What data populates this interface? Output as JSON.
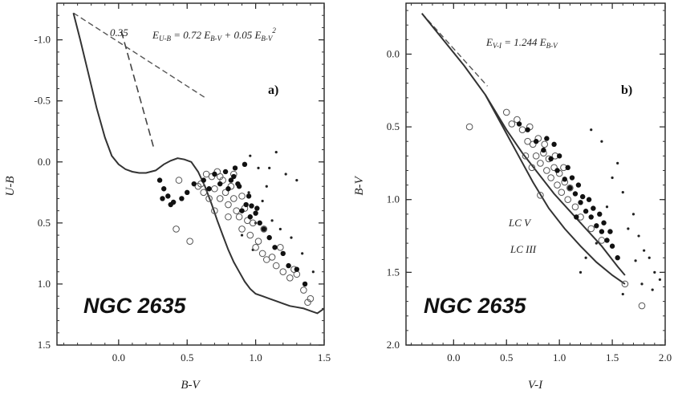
{
  "chart_data": [
    {
      "type": "scatter",
      "panel_label": "a)",
      "title": "NGC 2635",
      "xlabel": "B-V",
      "ylabel": "U-B",
      "xlim": [
        -0.45,
        1.5
      ],
      "ylim": [
        1.5,
        -1.3
      ],
      "y_inverted": true,
      "xticks": [
        "0.0",
        "0.5",
        "1.0",
        "1.5"
      ],
      "yticks": [
        "-1.0",
        "-0.5",
        "0.0",
        "0.5",
        "1.0",
        "1.5"
      ],
      "xtick_values": [
        0.0,
        0.5,
        1.0,
        1.5
      ],
      "ytick_values": [
        -1.0,
        -0.5,
        0.0,
        0.5,
        1.0,
        1.5
      ],
      "annotations": [
        {
          "text": "0.35",
          "x": 0.04,
          "y": -1.07
        },
        {
          "text": "E",
          "sub": "U-B",
          "rest": " = 0.72 E",
          "sub2": "B-V",
          "rest2": " + 0.05 E",
          "sub3": "B-V",
          "sup": "2",
          "x": 0.26,
          "y": -1.08
        }
      ],
      "reference_lines": [
        {
          "style": "dashed",
          "x": [
            -0.33,
            0.64
          ],
          "y": [
            -1.22,
            -0.52
          ]
        },
        {
          "style": "long-dashed",
          "x": [
            0.02,
            0.26
          ],
          "y": [
            -1.07,
            -0.1
          ]
        }
      ],
      "curve": {
        "x": [
          -0.33,
          -0.28,
          -0.22,
          -0.16,
          -0.1,
          -0.05,
          0.0,
          0.05,
          0.1,
          0.15,
          0.2,
          0.27,
          0.33,
          0.38,
          0.43,
          0.48,
          0.53,
          0.58,
          0.63,
          0.68,
          0.72,
          0.76,
          0.8,
          0.84,
          0.88,
          0.92,
          0.96,
          1.0,
          1.05,
          1.1,
          1.15,
          1.2,
          1.25,
          1.3,
          1.35,
          1.4,
          1.45,
          1.5
        ],
        "y": [
          -1.22,
          -1.0,
          -0.72,
          -0.44,
          -0.2,
          -0.05,
          0.02,
          0.06,
          0.08,
          0.09,
          0.09,
          0.07,
          0.02,
          -0.01,
          -0.03,
          -0.02,
          0.0,
          0.08,
          0.2,
          0.35,
          0.48,
          0.6,
          0.72,
          0.82,
          0.9,
          0.98,
          1.04,
          1.08,
          1.1,
          1.12,
          1.14,
          1.16,
          1.18,
          1.19,
          1.2,
          1.22,
          1.24,
          1.2
        ]
      },
      "open_points": {
        "x": [
          0.42,
          0.44,
          0.52,
          0.6,
          0.64,
          0.68,
          0.7,
          0.72,
          0.74,
          0.76,
          0.78,
          0.8,
          0.82,
          0.84,
          0.86,
          0.88,
          0.9,
          0.92,
          0.94,
          0.96,
          0.98,
          1.0,
          1.02,
          1.05,
          1.08,
          1.12,
          1.15,
          1.2,
          1.25,
          1.3,
          1.35,
          1.4,
          0.66,
          0.74,
          0.84,
          0.9,
          1.06,
          1.18,
          1.28,
          1.38,
          0.7,
          0.8,
          0.62,
          0.58
        ],
        "y": [
          0.55,
          0.15,
          0.65,
          0.18,
          0.1,
          0.12,
          0.22,
          0.08,
          0.3,
          0.15,
          0.25,
          0.35,
          0.2,
          0.3,
          0.4,
          0.45,
          0.55,
          0.38,
          0.48,
          0.6,
          0.5,
          0.7,
          0.65,
          0.75,
          0.8,
          0.78,
          0.85,
          0.9,
          0.95,
          0.92,
          1.05,
          1.12,
          0.3,
          0.12,
          0.1,
          0.28,
          0.55,
          0.7,
          0.88,
          1.15,
          0.4,
          0.45,
          0.25,
          0.2
        ]
      },
      "filled_points": {
        "x": [
          0.3,
          0.32,
          0.36,
          0.4,
          0.46,
          0.5,
          0.55,
          0.62,
          0.66,
          0.7,
          0.74,
          0.78,
          0.8,
          0.82,
          0.85,
          0.88,
          0.9,
          0.93,
          0.96,
          1.0,
          1.03,
          1.06,
          1.1,
          1.14,
          1.2,
          1.24,
          1.3,
          1.36,
          0.84,
          0.87,
          0.92,
          0.95,
          0.97,
          1.01,
          0.33,
          0.38
        ],
        "y": [
          0.15,
          0.3,
          0.28,
          0.33,
          0.3,
          0.25,
          0.18,
          0.15,
          0.22,
          0.1,
          0.18,
          0.08,
          0.22,
          0.15,
          0.05,
          0.2,
          0.4,
          0.35,
          0.45,
          0.42,
          0.5,
          0.55,
          0.62,
          0.7,
          0.75,
          0.85,
          0.88,
          1.0,
          0.12,
          0.18,
          0.02,
          0.28,
          0.36,
          0.38,
          0.22,
          0.35
        ]
      },
      "small_points": {
        "x": [
          0.96,
          1.02,
          1.08,
          1.15,
          1.22,
          1.3,
          1.05,
          1.12,
          0.9,
          0.95,
          1.0,
          1.18,
          1.26,
          1.34,
          1.42,
          0.98,
          1.1
        ],
        "y": [
          -0.05,
          0.05,
          0.2,
          -0.08,
          0.1,
          0.15,
          0.32,
          0.48,
          0.6,
          0.25,
          0.5,
          0.55,
          0.62,
          0.75,
          0.9,
          0.72,
          0.05
        ]
      }
    },
    {
      "type": "scatter",
      "panel_label": "b)",
      "title": "NGC 2635",
      "xlabel": "V-I",
      "ylabel": "B-V",
      "xlim": [
        -0.45,
        2.0
      ],
      "ylim": [
        2.0,
        -0.35
      ],
      "y_inverted": true,
      "xticks": [
        "0.0",
        "0.5",
        "1.0",
        "1.5",
        "2.0"
      ],
      "yticks": [
        "0.0",
        "0.5",
        "1.0",
        "1.5",
        "2.0"
      ],
      "xtick_values": [
        0.0,
        0.5,
        1.0,
        1.5,
        2.0
      ],
      "ytick_values": [
        0.0,
        0.5,
        1.0,
        1.5,
        2.0
      ],
      "annotations": [
        {
          "text": "E",
          "sub": "V-I",
          "rest": " = 1.244 E",
          "sub2": "B-V",
          "x": 0.36,
          "y": -0.12
        },
        {
          "text": "LC V",
          "x": 0.72,
          "y": 1.15
        },
        {
          "text": "LC III",
          "x": 0.74,
          "y": 1.42
        }
      ],
      "reference_lines": [
        {
          "style": "dashed",
          "x": [
            -0.3,
            0.32
          ],
          "y": [
            -0.28,
            0.22
          ]
        }
      ],
      "curves": [
        {
          "name": "LC V",
          "x": [
            -0.3,
            -0.1,
            0.1,
            0.3,
            0.5,
            0.65,
            0.8,
            0.95,
            1.1,
            1.25,
            1.4,
            1.55,
            1.62
          ],
          "y": [
            -0.28,
            -0.1,
            0.08,
            0.28,
            0.52,
            0.68,
            0.82,
            0.96,
            1.08,
            1.2,
            1.32,
            1.46,
            1.52
          ]
        },
        {
          "name": "LC III",
          "x": [
            0.3,
            0.45,
            0.6,
            0.75,
            0.9,
            1.05,
            1.2,
            1.35,
            1.5,
            1.62
          ],
          "y": [
            0.28,
            0.48,
            0.68,
            0.88,
            1.06,
            1.2,
            1.32,
            1.43,
            1.52,
            1.58
          ]
        }
      ],
      "open_points": {
        "x": [
          0.15,
          0.82,
          1.62,
          1.78,
          0.6,
          0.65,
          0.7,
          0.72,
          0.75,
          0.78,
          0.8,
          0.82,
          0.85,
          0.88,
          0.9,
          0.92,
          0.95,
          0.98,
          1.0,
          1.02,
          1.05,
          1.08,
          1.1,
          1.15,
          1.2,
          0.68,
          0.74,
          0.86,
          0.96,
          1.04,
          0.5,
          0.55,
          1.3,
          1.4
        ],
        "y": [
          0.5,
          0.97,
          1.58,
          1.73,
          0.45,
          0.52,
          0.6,
          0.5,
          0.62,
          0.7,
          0.58,
          0.75,
          0.68,
          0.8,
          0.72,
          0.85,
          0.78,
          0.9,
          0.82,
          0.95,
          0.88,
          1.0,
          0.92,
          1.05,
          1.12,
          0.7,
          0.78,
          0.62,
          0.7,
          0.78,
          0.4,
          0.48,
          1.2,
          1.28
        ]
      },
      "filled_points": {
        "x": [
          0.62,
          0.7,
          0.78,
          0.85,
          0.92,
          0.98,
          1.05,
          1.1,
          1.15,
          1.2,
          1.25,
          1.3,
          1.35,
          1.4,
          1.45,
          1.5,
          1.55,
          0.95,
          1.0,
          1.08,
          1.12,
          1.18,
          1.22,
          1.28,
          1.32,
          1.38,
          1.42,
          1.48,
          0.88,
          1.16
        ],
        "y": [
          0.48,
          0.52,
          0.6,
          0.66,
          0.72,
          0.8,
          0.86,
          0.92,
          0.96,
          1.02,
          1.08,
          1.12,
          1.18,
          1.22,
          1.28,
          1.32,
          1.4,
          0.62,
          0.7,
          0.78,
          0.85,
          0.9,
          0.98,
          1.0,
          1.06,
          1.1,
          1.16,
          1.22,
          0.58,
          1.12
        ]
      },
      "small_points": {
        "x": [
          1.3,
          1.4,
          1.55,
          1.6,
          1.7,
          1.75,
          1.8,
          1.85,
          1.9,
          1.95,
          1.5,
          1.65,
          1.72,
          1.45,
          1.35,
          1.25,
          1.2,
          1.6,
          1.78,
          1.88
        ],
        "y": [
          0.52,
          0.6,
          0.75,
          0.95,
          1.1,
          1.25,
          1.35,
          1.4,
          1.5,
          1.55,
          0.85,
          1.2,
          1.42,
          1.05,
          1.3,
          1.4,
          1.5,
          1.65,
          1.58,
          1.62
        ]
      }
    }
  ]
}
